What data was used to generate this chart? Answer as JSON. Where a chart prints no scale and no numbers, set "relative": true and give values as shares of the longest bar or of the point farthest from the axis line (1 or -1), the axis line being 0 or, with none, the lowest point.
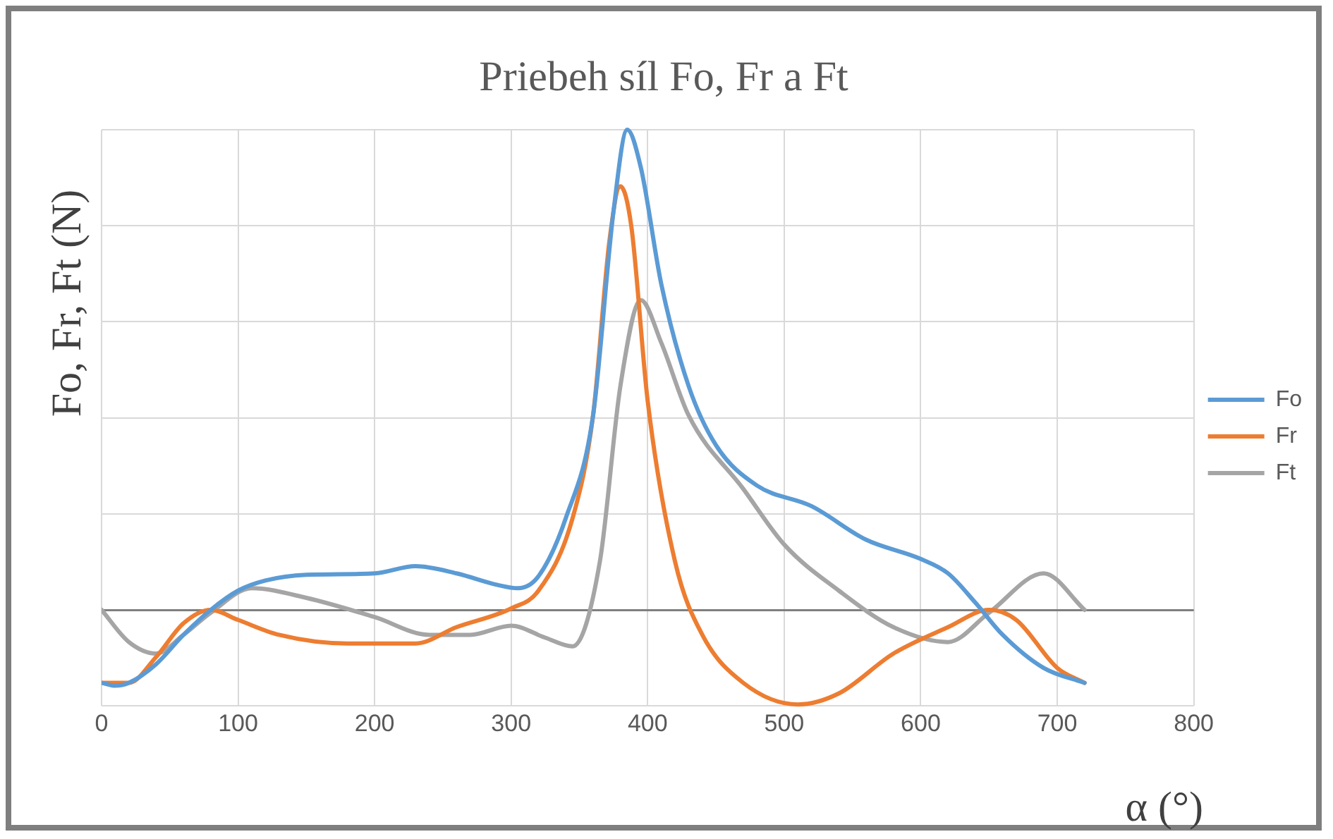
{
  "chart_data": {
    "type": "line",
    "title": "Priebeh síl  Fo, Fr a Ft",
    "xlabel": "α (°)",
    "ylabel": "Fo, Fr, Ft (N)",
    "relative": true,
    "xlim": [
      0,
      800
    ],
    "xticks": [
      0,
      100,
      200,
      300,
      400,
      500,
      600,
      700,
      800
    ],
    "grid": true,
    "legend": "right",
    "marker": "none",
    "line_style": "solid",
    "series": [
      {
        "name": "Fo",
        "color": "#5b9bd5",
        "x": [
          0,
          10,
          20,
          40,
          60,
          80,
          100,
          120,
          150,
          200,
          230,
          260,
          290,
          305,
          320,
          340,
          360,
          375,
          385,
          395,
          410,
          430,
          450,
          480,
          520,
          560,
          600,
          620,
          640,
          660,
          690,
          720
        ],
        "values": [
          -0.152,
          -0.158,
          -0.152,
          -0.113,
          -0.052,
          0,
          0.04,
          0.061,
          0.073,
          0.076,
          0.091,
          0.076,
          0.052,
          0.045,
          0.07,
          0.191,
          0.405,
          0.831,
          1,
          0.921,
          0.678,
          0.466,
          0.343,
          0.259,
          0.216,
          0.146,
          0.106,
          0.076,
          0.015,
          -0.052,
          -0.121,
          -0.152
        ]
      },
      {
        "name": "Fr",
        "color": "#ed7d31",
        "x": [
          0,
          20,
          40,
          60,
          80,
          100,
          130,
          180,
          230,
          260,
          300,
          320,
          345,
          360,
          372,
          380,
          388,
          400,
          420,
          440,
          470,
          510,
          540,
          580,
          620,
          650,
          670,
          700,
          720
        ],
        "values": [
          -0.152,
          -0.152,
          -0.098,
          -0.028,
          0,
          -0.021,
          -0.052,
          -0.07,
          -0.07,
          -0.036,
          0.003,
          0.04,
          0.191,
          0.405,
          0.769,
          0.882,
          0.799,
          0.435,
          0.101,
          -0.052,
          -0.152,
          -0.197,
          -0.174,
          -0.091,
          -0.036,
          0,
          -0.021,
          -0.121,
          -0.152
        ]
      },
      {
        "name": "Ft",
        "color": "#a5a5a5",
        "x": [
          0,
          20,
          40,
          60,
          80,
          110,
          150,
          200,
          240,
          270,
          300,
          325,
          345,
          365,
          380,
          395,
          410,
          430,
          470,
          500,
          540,
          580,
          620,
          650,
          690,
          720
        ],
        "values": [
          0,
          -0.067,
          -0.091,
          -0.052,
          -0.006,
          0.045,
          0.025,
          -0.015,
          -0.052,
          -0.052,
          -0.033,
          -0.058,
          -0.076,
          0.101,
          0.466,
          0.645,
          0.556,
          0.405,
          0.252,
          0.136,
          0.04,
          -0.036,
          -0.067,
          -0.006,
          0.076,
          0
        ]
      }
    ]
  }
}
